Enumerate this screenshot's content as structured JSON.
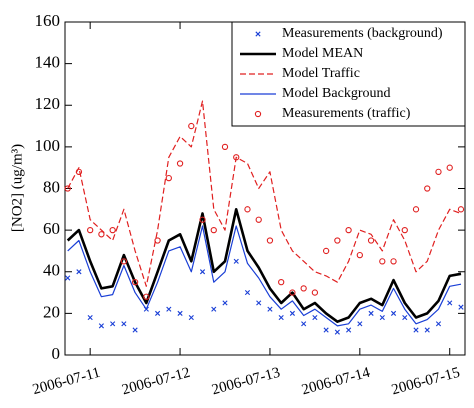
{
  "chart_data": {
    "type": "line",
    "y_label": "[NO2] (ug/m³)",
    "x": [
      10.75,
      10.875,
      11.0,
      11.125,
      11.25,
      11.375,
      11.5,
      11.625,
      11.75,
      11.875,
      12.0,
      12.125,
      12.25,
      12.375,
      12.5,
      12.625,
      12.75,
      12.875,
      13.0,
      13.125,
      13.25,
      13.375,
      13.5,
      13.625,
      13.75,
      13.875,
      14.0,
      14.125,
      14.25,
      14.375,
      14.5,
      14.625,
      14.75,
      14.875,
      15.0,
      15.125
    ],
    "xlim": [
      10.72,
      15.17
    ],
    "xticks": [
      {
        "value": 11,
        "label": "2006-07-11"
      },
      {
        "value": 12,
        "label": "2006-07-12"
      },
      {
        "value": 13,
        "label": "2006-07-13"
      },
      {
        "value": 14,
        "label": "2006-07-14"
      },
      {
        "value": 15,
        "label": "2006-07-15"
      }
    ],
    "ylim": [
      0,
      160
    ],
    "yticks": [
      0,
      20,
      40,
      60,
      80,
      100,
      120,
      140,
      160
    ],
    "series": [
      {
        "name": "Measurements (background)",
        "color": "#1a3fd6",
        "style": "x-marker",
        "values": [
          37,
          40,
          18,
          14,
          15,
          15,
          12,
          22,
          20,
          22,
          20,
          18,
          40,
          22,
          25,
          45,
          30,
          25,
          22,
          18,
          20,
          15,
          18,
          12,
          11,
          12,
          15,
          20,
          18,
          20,
          18,
          12,
          12,
          15,
          25,
          23
        ]
      },
      {
        "name": "Model MEAN",
        "color": "#000000",
        "style": "thick",
        "values": [
          55,
          60,
          45,
          32,
          33,
          48,
          35,
          25,
          40,
          55,
          58,
          45,
          68,
          40,
          45,
          70,
          50,
          42,
          32,
          25,
          30,
          22,
          25,
          20,
          16,
          18,
          25,
          27,
          24,
          36,
          25,
          18,
          20,
          26,
          38,
          39
        ]
      },
      {
        "name": "Model Traffic",
        "color": "#e02020",
        "style": "dashed",
        "values": [
          80,
          90,
          65,
          60,
          55,
          70,
          50,
          33,
          60,
          95,
          105,
          100,
          122,
          70,
          60,
          95,
          92,
          80,
          88,
          60,
          50,
          45,
          40,
          38,
          35,
          45,
          60,
          58,
          50,
          65,
          55,
          40,
          45,
          60,
          70,
          68
        ]
      },
      {
        "name": "Model Background",
        "color": "#1a3fd6",
        "style": "thin",
        "values": [
          50,
          55,
          40,
          28,
          29,
          43,
          30,
          22,
          35,
          50,
          52,
          40,
          62,
          35,
          40,
          62,
          44,
          37,
          28,
          22,
          26,
          19,
          22,
          18,
          14,
          15,
          22,
          24,
          21,
          32,
          22,
          15,
          17,
          22,
          33,
          34
        ]
      },
      {
        "name": "Measurements (traffic)",
        "color": "#e02020",
        "style": "circle-marker",
        "values": [
          80,
          88,
          60,
          58,
          60,
          45,
          35,
          28,
          55,
          85,
          92,
          110,
          65,
          60,
          100,
          95,
          70,
          65,
          55,
          35,
          30,
          32,
          30,
          50,
          55,
          60,
          48,
          55,
          45,
          45,
          60,
          70,
          80,
          88,
          90,
          70
        ]
      }
    ]
  }
}
